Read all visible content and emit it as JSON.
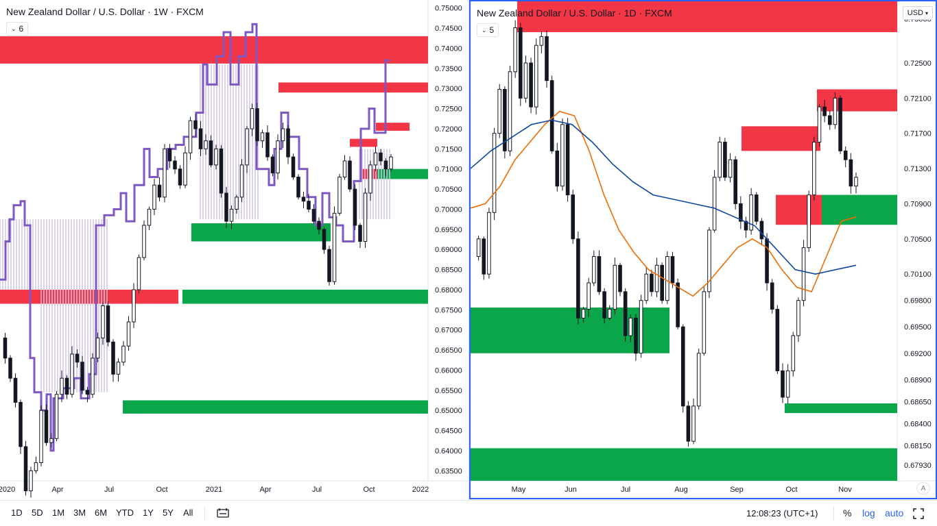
{
  "left_chart": {
    "title": "New Zealand Dollar / U.S. Dollar · 1W · FXCM",
    "indicator_count": "6",
    "price_ticks": [
      "0.75000",
      "0.74500",
      "0.74000",
      "0.73500",
      "0.73000",
      "0.72500",
      "0.72000",
      "0.71500",
      "0.71000",
      "0.70500",
      "0.70000",
      "0.69500",
      "0.69000",
      "0.68500",
      "0.68000",
      "0.67500",
      "0.67000",
      "0.66500",
      "0.66000",
      "0.65500",
      "0.65000",
      "0.64500",
      "0.64000",
      "0.63500"
    ],
    "time_ticks": [
      "2020",
      "Apr",
      "Jul",
      "Oct",
      "2021",
      "Apr",
      "Jul",
      "Oct",
      "2022"
    ]
  },
  "right_chart": {
    "title": "New Zealand Dollar / U.S. Dollar · 1D · FXCM",
    "indicator_count": "5",
    "currency_button": "USD",
    "auto_scale_label": "A",
    "price_ticks": [
      "0.73000",
      "0.72500",
      "0.72100",
      "0.71700",
      "0.71300",
      "0.70900",
      "0.70500",
      "0.70100",
      "0.69800",
      "0.69500",
      "0.69200",
      "0.68900",
      "0.68650",
      "0.68400",
      "0.68150",
      "0.67930"
    ],
    "time_ticks": [
      "May",
      "Jun",
      "Jul",
      "Aug",
      "Sep",
      "Oct",
      "Nov"
    ]
  },
  "bottom_bar": {
    "ranges": [
      "1D",
      "5D",
      "1M",
      "3M",
      "6M",
      "YTD",
      "1Y",
      "5Y",
      "All"
    ],
    "time_display": "12:08:23 (UTC+1)",
    "percent_label": "%",
    "log_label": "log",
    "auto_label": "auto"
  },
  "colors": {
    "supply_zone": "#f23645",
    "demand_zone": "#0ba54a",
    "candle_outline": "#131722",
    "indicator_line": "#7e57c2",
    "indicator_fill": "#d1c4e9",
    "ma_fast": "#ef6c00",
    "ma_slow": "#0d47a1",
    "accent": "#2962ff"
  },
  "chart_data": [
    {
      "type": "candlestick",
      "title": "New Zealand Dollar / U.S. Dollar · 1W · FXCM",
      "timeframe": "1W",
      "ylim": [
        0.6325,
        0.752
      ],
      "x_ticks": [
        "2020",
        "Apr",
        "Jul",
        "Oct",
        "2021",
        "Apr",
        "Jul",
        "Oct",
        "2022"
      ],
      "close_path": [
        0.668,
        0.663,
        0.658,
        0.652,
        0.641,
        0.63,
        0.635,
        0.637,
        0.65,
        0.642,
        0.643,
        0.654,
        0.658,
        0.654,
        0.664,
        0.662,
        0.655,
        0.654,
        0.663,
        0.668,
        0.676,
        0.667,
        0.659,
        0.662,
        0.666,
        0.672,
        0.68,
        0.688,
        0.696,
        0.7,
        0.706,
        0.703,
        0.715,
        0.712,
        0.71,
        0.706,
        0.714,
        0.722,
        0.72,
        0.715,
        0.717,
        0.711,
        0.715,
        0.704,
        0.697,
        0.7,
        0.703,
        0.711,
        0.72,
        0.725,
        0.717,
        0.719,
        0.713,
        0.709,
        0.717,
        0.72,
        0.713,
        0.708,
        0.703,
        0.702,
        0.7,
        0.697,
        0.695,
        0.69,
        0.682,
        0.699,
        0.708,
        0.712,
        0.705,
        0.696,
        0.692,
        0.704,
        0.711,
        0.714,
        0.712,
        0.71,
        0.713
      ],
      "zones": [
        {
          "kind": "supply",
          "from": 0.7362,
          "to": 0.743,
          "start": "2020"
        },
        {
          "kind": "supply",
          "from": 0.729,
          "to": 0.7315,
          "start": "2021 Apr"
        },
        {
          "kind": "supply",
          "from": 0.7195,
          "to": 0.7215,
          "start": "2021 Oct"
        },
        {
          "kind": "supply",
          "from": 0.7155,
          "to": 0.7175,
          "start": "2021 Sep"
        },
        {
          "kind": "supply",
          "from": 0.7075,
          "to": 0.71,
          "start": "2021 Sep"
        },
        {
          "kind": "supply",
          "from": 0.6765,
          "to": 0.68,
          "start": "2020"
        },
        {
          "kind": "demand",
          "from": 0.7075,
          "to": 0.71,
          "start": "2021 Oct"
        },
        {
          "kind": "demand",
          "from": 0.692,
          "to": 0.6965,
          "start": "2020 Dec"
        },
        {
          "kind": "demand",
          "from": 0.6765,
          "to": 0.68,
          "start": "2020 Nov"
        },
        {
          "kind": "demand",
          "from": 0.6492,
          "to": 0.6525,
          "start": "2020 Jul"
        }
      ]
    },
    {
      "type": "candlestick",
      "title": "New Zealand Dollar / U.S. Dollar · 1D · FXCM",
      "timeframe": "1D",
      "ylim": [
        0.6775,
        0.732
      ],
      "x_ticks": [
        "May",
        "Jun",
        "Jul",
        "Aug",
        "Sep",
        "Oct",
        "Nov"
      ],
      "close_path": [
        0.703,
        0.705,
        0.701,
        0.708,
        0.717,
        0.722,
        0.715,
        0.724,
        0.729,
        0.721,
        0.725,
        0.72,
        0.727,
        0.728,
        0.723,
        0.715,
        0.711,
        0.718,
        0.71,
        0.705,
        0.696,
        0.697,
        0.7,
        0.703,
        0.699,
        0.696,
        0.697,
        0.702,
        0.699,
        0.694,
        0.696,
        0.692,
        0.698,
        0.701,
        0.699,
        0.702,
        0.698,
        0.703,
        0.7,
        0.695,
        0.686,
        0.682,
        0.686,
        0.692,
        0.699,
        0.706,
        0.712,
        0.716,
        0.712,
        0.714,
        0.709,
        0.707,
        0.706,
        0.71,
        0.707,
        0.705,
        0.7,
        0.697,
        0.69,
        0.687,
        0.69,
        0.694,
        0.698,
        0.704,
        0.71,
        0.716,
        0.72,
        0.719,
        0.718,
        0.721,
        0.715,
        0.714,
        0.711,
        0.712
      ],
      "moving_averages": [
        {
          "color": "#ef6c00",
          "path": [
            0.7085,
            0.709,
            0.711,
            0.714,
            0.716,
            0.718,
            0.7195,
            0.719,
            0.715,
            0.71,
            0.706,
            0.7035,
            0.7015,
            0.7005,
            0.6995,
            0.6985,
            0.7,
            0.702,
            0.704,
            0.705,
            0.704,
            0.7015,
            0.6995,
            0.699,
            0.703,
            0.707,
            0.7075
          ]
        },
        {
          "color": "#0d47a1",
          "path": [
            0.713,
            0.715,
            0.7165,
            0.718,
            0.7185,
            0.718,
            0.716,
            0.7135,
            0.7115,
            0.71,
            0.7095,
            0.709,
            0.7085,
            0.7075,
            0.7065,
            0.704,
            0.7015,
            0.701,
            0.7015,
            0.702
          ]
        }
      ],
      "zones": [
        {
          "kind": "supply",
          "from": 0.7285,
          "to": 0.7325,
          "start": "May"
        },
        {
          "kind": "supply",
          "from": 0.7195,
          "to": 0.722,
          "start": "Oct"
        },
        {
          "kind": "supply",
          "from": 0.715,
          "to": 0.7178,
          "start": "Sep"
        },
        {
          "kind": "supply",
          "from": 0.7066,
          "to": 0.71,
          "start": "Sep"
        },
        {
          "kind": "demand",
          "from": 0.7066,
          "to": 0.71,
          "start": "Oct"
        },
        {
          "kind": "demand",
          "from": 0.692,
          "to": 0.6972,
          "start": "May"
        },
        {
          "kind": "demand",
          "from": 0.6852,
          "to": 0.6863,
          "start": "Oct"
        },
        {
          "kind": "demand",
          "from": 0.6775,
          "to": 0.6812,
          "start": "May"
        }
      ]
    }
  ]
}
